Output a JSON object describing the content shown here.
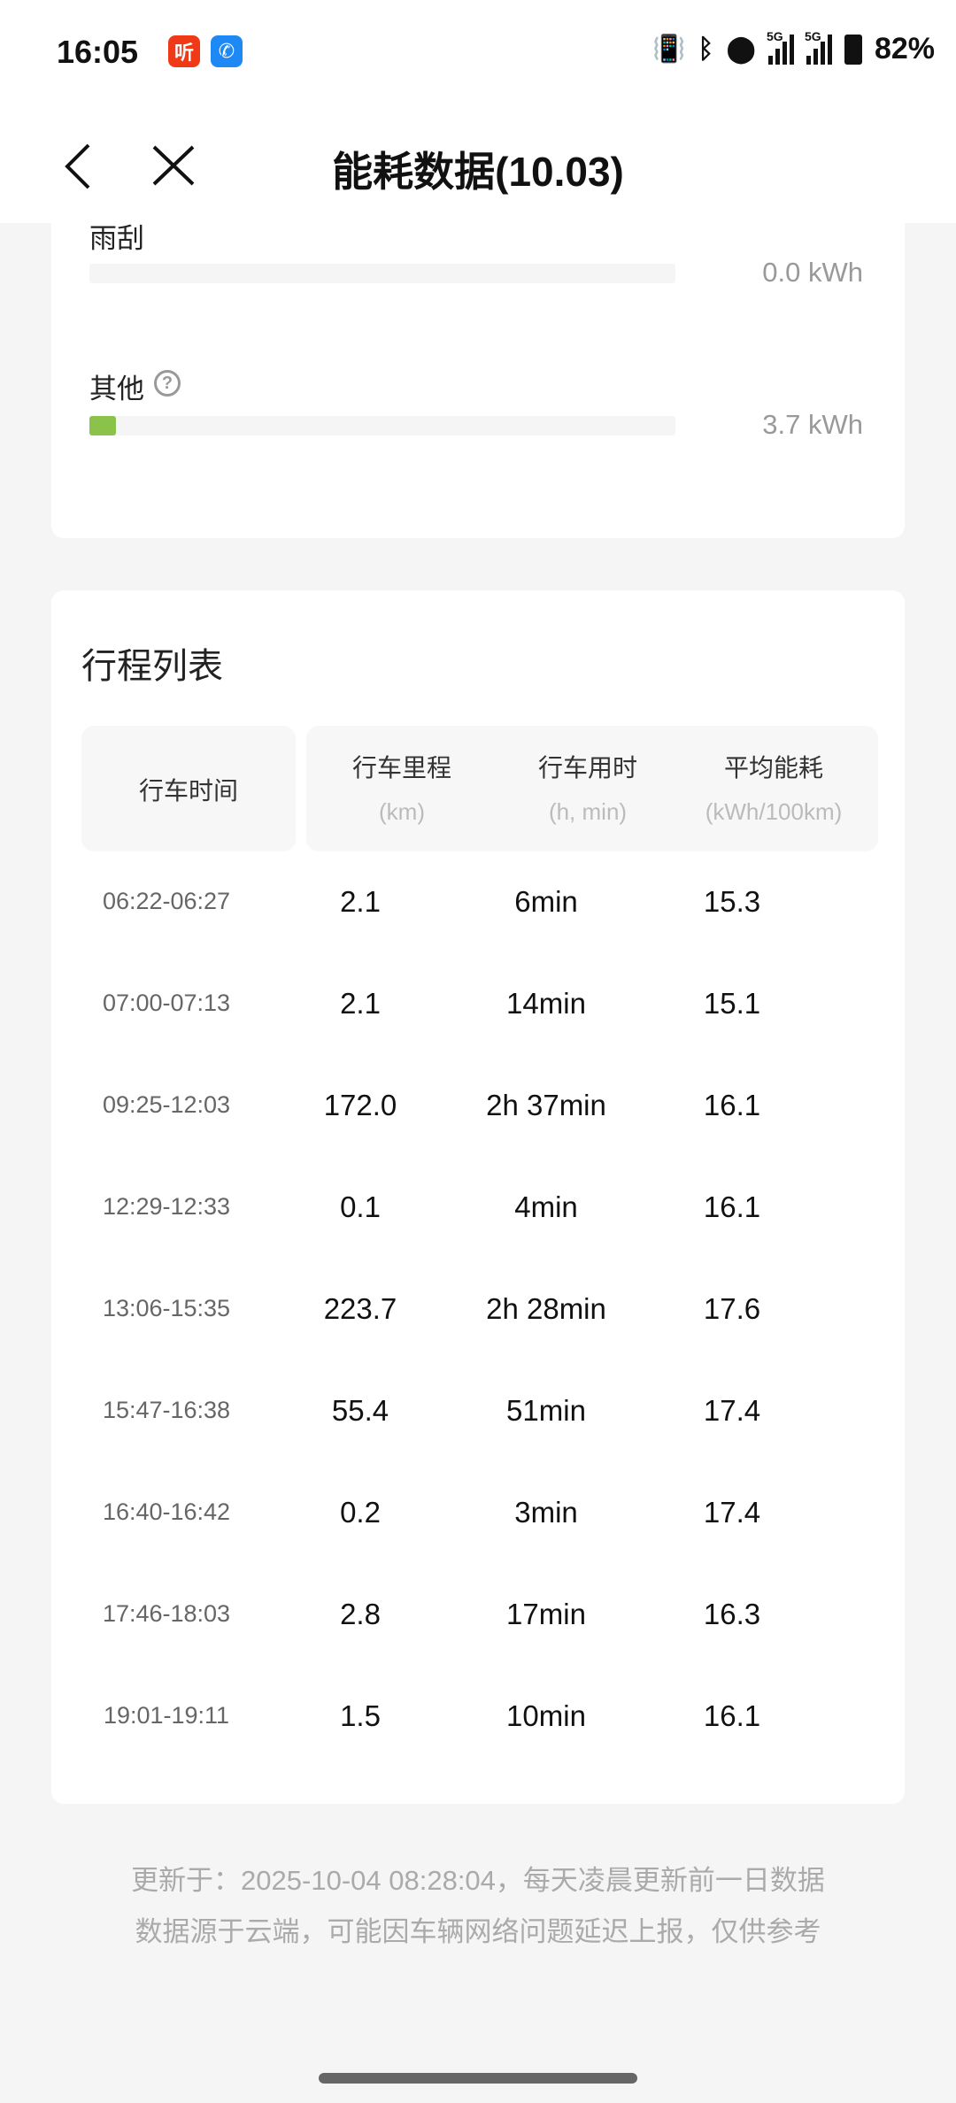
{
  "status_bar": {
    "time": "16:05",
    "battery": "82%",
    "network_1": "5G",
    "network_2": "5G",
    "icons": [
      "ximalaya-app-icon",
      "phone-app-icon",
      "vibrate-icon",
      "bluetooth-icon",
      "location-icon",
      "signal-icon",
      "signal-icon",
      "battery-icon"
    ],
    "app_icon_1_glyph": "听",
    "app_icon_1_color": "#f03a17",
    "app_icon_2_color": "#1e88f5"
  },
  "header": {
    "title": "能耗数据(10.03)"
  },
  "energy_items": [
    {
      "label": "雨刮",
      "value": "0.0 kWh",
      "fill_percent": 0
    },
    {
      "label": "其他",
      "value": "3.7 kWh",
      "fill_percent": 4.5,
      "help_icon": "question-circle-icon"
    }
  ],
  "accent_color": "#8bc34a",
  "trip_list": {
    "title": "行程列表",
    "columns": [
      {
        "label": "行车时间",
        "unit": ""
      },
      {
        "label": "行车里程",
        "unit": "(km)"
      },
      {
        "label": "行车用时",
        "unit": "(h, min)"
      },
      {
        "label": "平均能耗",
        "unit": "(kWh/100km)"
      }
    ],
    "rows": [
      [
        "06:22-06:27",
        "2.1",
        "6min",
        "15.3"
      ],
      [
        "07:00-07:13",
        "2.1",
        "14min",
        "15.1"
      ],
      [
        "09:25-12:03",
        "172.0",
        "2h 37min",
        "16.1"
      ],
      [
        "12:29-12:33",
        "0.1",
        "4min",
        "16.1"
      ],
      [
        "13:06-15:35",
        "223.7",
        "2h 28min",
        "17.6"
      ],
      [
        "15:47-16:38",
        "55.4",
        "51min",
        "17.4"
      ],
      [
        "16:40-16:42",
        "0.2",
        "3min",
        "17.4"
      ],
      [
        "17:46-18:03",
        "2.8",
        "17min",
        "16.3"
      ],
      [
        "19:01-19:11",
        "1.5",
        "10min",
        "16.1"
      ]
    ]
  },
  "footer": {
    "line1": "更新于：2025-10-04 08:28:04，每天凌晨更新前一日数据",
    "line2": "数据源于云端，可能因车辆网络问题延迟上报，仅供参考"
  }
}
